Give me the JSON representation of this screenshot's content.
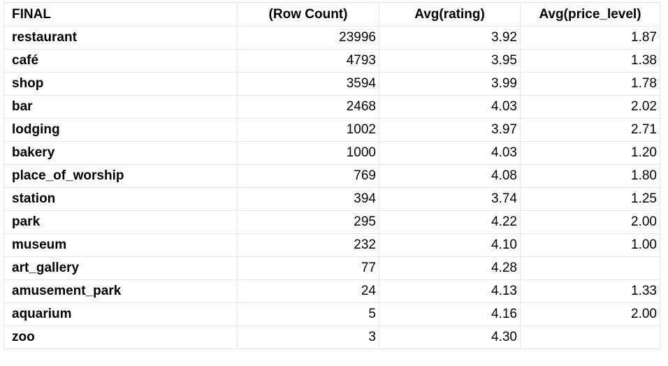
{
  "table": {
    "columns": [
      "FINAL",
      "(Row Count)",
      "Avg(rating)",
      "Avg(price_level)"
    ],
    "rows": [
      {
        "label": "restaurant",
        "count": "23996",
        "rating": "3.92",
        "price": "1.87"
      },
      {
        "label": "café",
        "count": "4793",
        "rating": "3.95",
        "price": "1.38"
      },
      {
        "label": "shop",
        "count": "3594",
        "rating": "3.99",
        "price": "1.78"
      },
      {
        "label": "bar",
        "count": "2468",
        "rating": "4.03",
        "price": "2.02"
      },
      {
        "label": "lodging",
        "count": "1002",
        "rating": "3.97",
        "price": "2.71"
      },
      {
        "label": "bakery",
        "count": "1000",
        "rating": "4.03",
        "price": "1.20"
      },
      {
        "label": "place_of_worship",
        "count": "769",
        "rating": "4.08",
        "price": "1.80"
      },
      {
        "label": "station",
        "count": "394",
        "rating": "3.74",
        "price": "1.25"
      },
      {
        "label": "park",
        "count": "295",
        "rating": "4.22",
        "price": "2.00"
      },
      {
        "label": "museum",
        "count": "232",
        "rating": "4.10",
        "price": "1.00"
      },
      {
        "label": "art_gallery",
        "count": "77",
        "rating": "4.28",
        "price": ""
      },
      {
        "label": "amusement_park",
        "count": "24",
        "rating": "4.13",
        "price": "1.33"
      },
      {
        "label": "aquarium",
        "count": "5",
        "rating": "4.16",
        "price": "2.00"
      },
      {
        "label": "zoo",
        "count": "3",
        "rating": "4.30",
        "price": ""
      }
    ]
  }
}
